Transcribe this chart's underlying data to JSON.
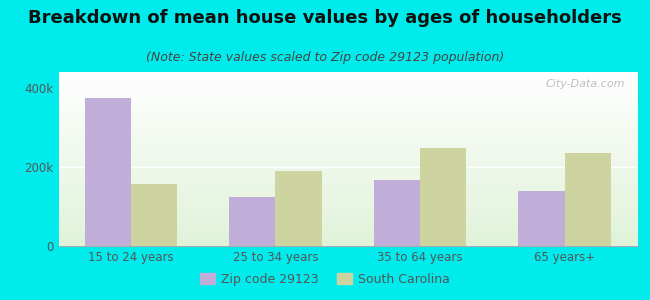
{
  "title": "Breakdown of mean house values by ages of householders",
  "subtitle": "(Note: State values scaled to Zip code 29123 population)",
  "categories": [
    "15 to 24 years",
    "25 to 34 years",
    "35 to 64 years",
    "65 years+"
  ],
  "zip_values": [
    375000,
    125000,
    168000,
    140000
  ],
  "state_values": [
    158000,
    190000,
    248000,
    235000
  ],
  "zip_color": "#c0aed9",
  "state_color": "#cdd4a0",
  "background_outer": "#00ecec",
  "yticks": [
    0,
    200000,
    400000
  ],
  "ytick_labels": [
    "0",
    "200k",
    "400k"
  ],
  "ylim": [
    0,
    440000
  ],
  "legend_zip": "Zip code 29123",
  "legend_state": "South Carolina",
  "title_fontsize": 13,
  "subtitle_fontsize": 9,
  "watermark": "City-Data.com",
  "tick_color": "#555555",
  "title_color": "#111111",
  "subtitle_color": "#444444"
}
